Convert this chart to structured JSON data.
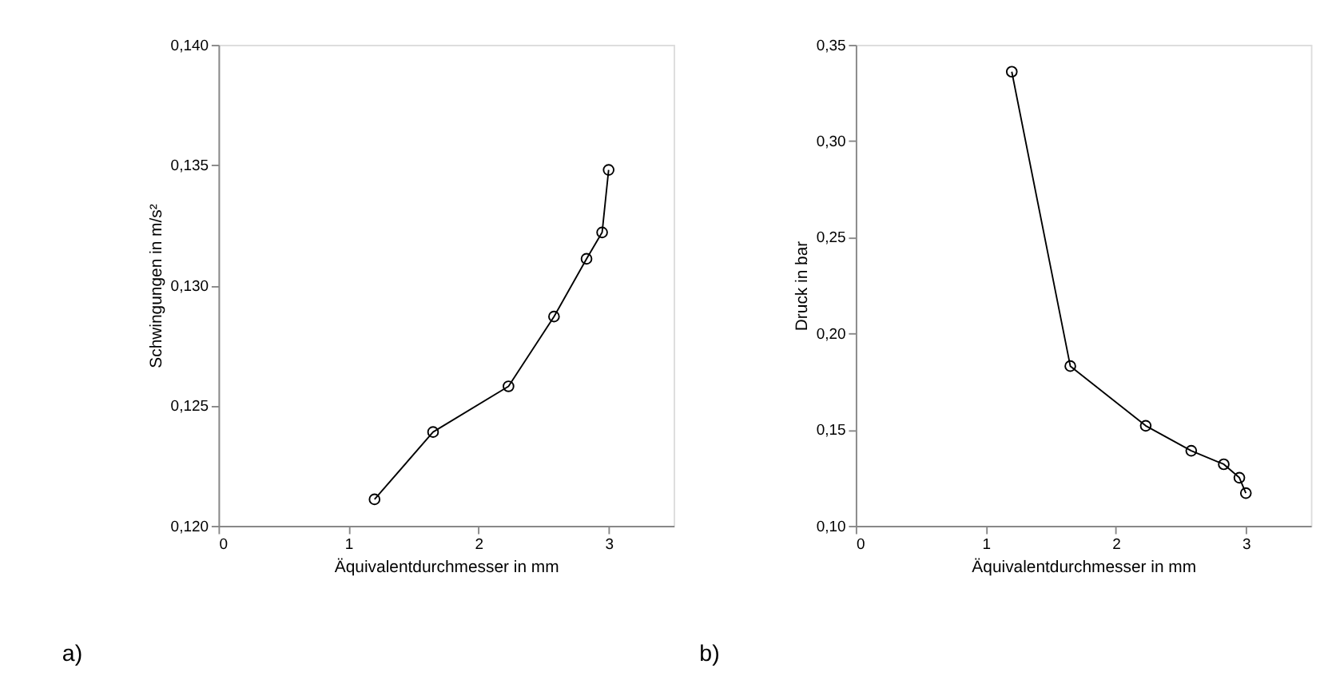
{
  "chart_data": [
    {
      "type": "line",
      "xlabel": "Äquivalentdurchmesser in mm",
      "ylabel": "Schwingungen in m/s²",
      "annotations": [
        "a)"
      ],
      "marker": "circle",
      "line_style": "solid",
      "grid": false,
      "x": [
        1.2,
        1.65,
        2.23,
        2.58,
        2.83,
        2.95,
        3.0
      ],
      "series": [
        {
          "color": "#000000",
          "values": [
            0.1211,
            0.1239,
            0.1258,
            0.1287,
            0.1311,
            0.1322,
            0.1348
          ]
        }
      ],
      "xlim": [
        0,
        3.5
      ],
      "xticks": [
        0,
        1,
        2,
        3
      ],
      "ylim": [
        0.12,
        0.14
      ],
      "yticks": [
        {
          "value": 0.12,
          "label": "0,120"
        },
        {
          "value": 0.125,
          "label": "0,125"
        },
        {
          "value": 0.13,
          "label": "0,130"
        },
        {
          "value": 0.135,
          "label": "0,135"
        },
        {
          "value": 0.14,
          "label": "0,140"
        }
      ]
    },
    {
      "type": "line",
      "xlabel": "Äquivalentdurchmesser in mm",
      "ylabel": "Druck in bar",
      "annotations": [
        "b)"
      ],
      "marker": "circle",
      "line_style": "solid",
      "grid": false,
      "x": [
        1.2,
        1.65,
        2.23,
        2.58,
        2.83,
        2.95,
        3.0
      ],
      "series": [
        {
          "color": "#000000",
          "values": [
            0.336,
            0.183,
            0.152,
            0.139,
            0.132,
            0.125,
            0.117
          ]
        }
      ],
      "xlim": [
        0,
        3.5
      ],
      "xticks": [
        0,
        1,
        2,
        3
      ],
      "ylim": [
        0.1,
        0.35
      ],
      "yticks": [
        {
          "value": 0.1,
          "label": "0,10"
        },
        {
          "value": 0.15,
          "label": "0,15"
        },
        {
          "value": 0.2,
          "label": "0,20"
        },
        {
          "value": 0.25,
          "label": "0,25"
        },
        {
          "value": 0.3,
          "label": "0,30"
        },
        {
          "value": 0.35,
          "label": "0,35"
        }
      ]
    }
  ]
}
